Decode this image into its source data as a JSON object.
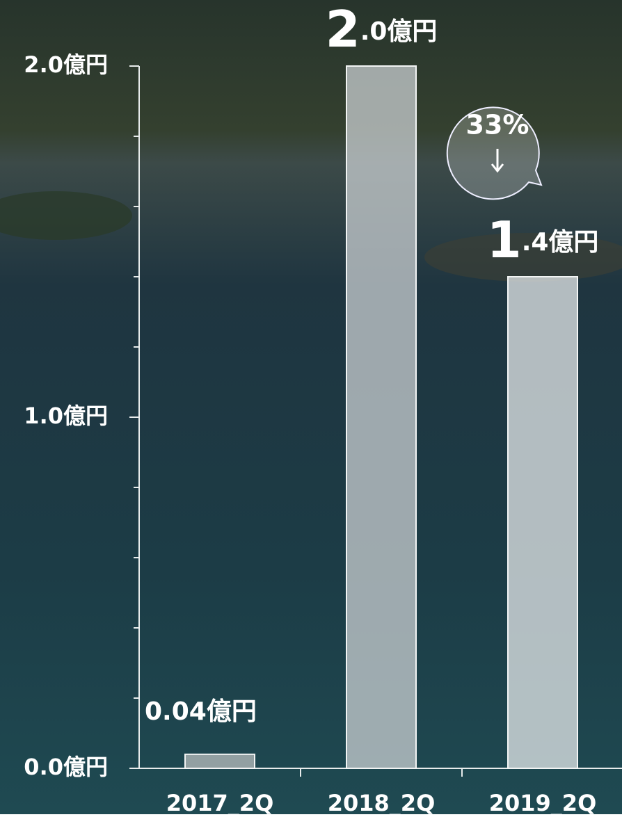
{
  "chart_data": {
    "type": "bar",
    "categories": [
      "2017_2Q",
      "2018_2Q",
      "2019_2Q"
    ],
    "values": [
      0.04,
      2.0,
      1.4
    ],
    "value_labels": [
      "0.04億円",
      "2.0億円",
      "1.4億円"
    ],
    "colors": [
      "#b9bdbe",
      "#c9cfd1",
      "#e6eaeb"
    ],
    "ylim": [
      0,
      2.0
    ],
    "yticks": [
      {
        "value": 0,
        "label": "0.0億円"
      },
      {
        "value": 1.0,
        "label": "1.0億円"
      },
      {
        "value": 2.0,
        "label": "2.0億円"
      }
    ],
    "yticks_minor": [
      0.2,
      0.4,
      0.6,
      0.8,
      1.2,
      1.4,
      1.6,
      1.8
    ],
    "annotation": "33%"
  }
}
